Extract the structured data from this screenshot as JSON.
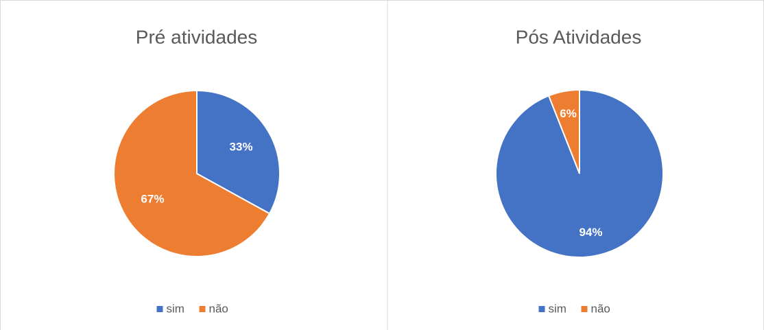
{
  "chart_data": [
    {
      "type": "pie",
      "title": "Pré atividades",
      "categories": [
        "sim",
        "não"
      ],
      "values": [
        33,
        67
      ],
      "value_labels": [
        "33%",
        "67%"
      ],
      "colors": [
        "#4472c4",
        "#ed7d31"
      ],
      "legend": "bottom"
    },
    {
      "type": "pie",
      "title": "Pós Atividades",
      "categories": [
        "sim",
        "não"
      ],
      "values": [
        94,
        6
      ],
      "value_labels": [
        "94%",
        "6%"
      ],
      "colors": [
        "#4472c4",
        "#ed7d31"
      ],
      "legend": "bottom"
    }
  ]
}
